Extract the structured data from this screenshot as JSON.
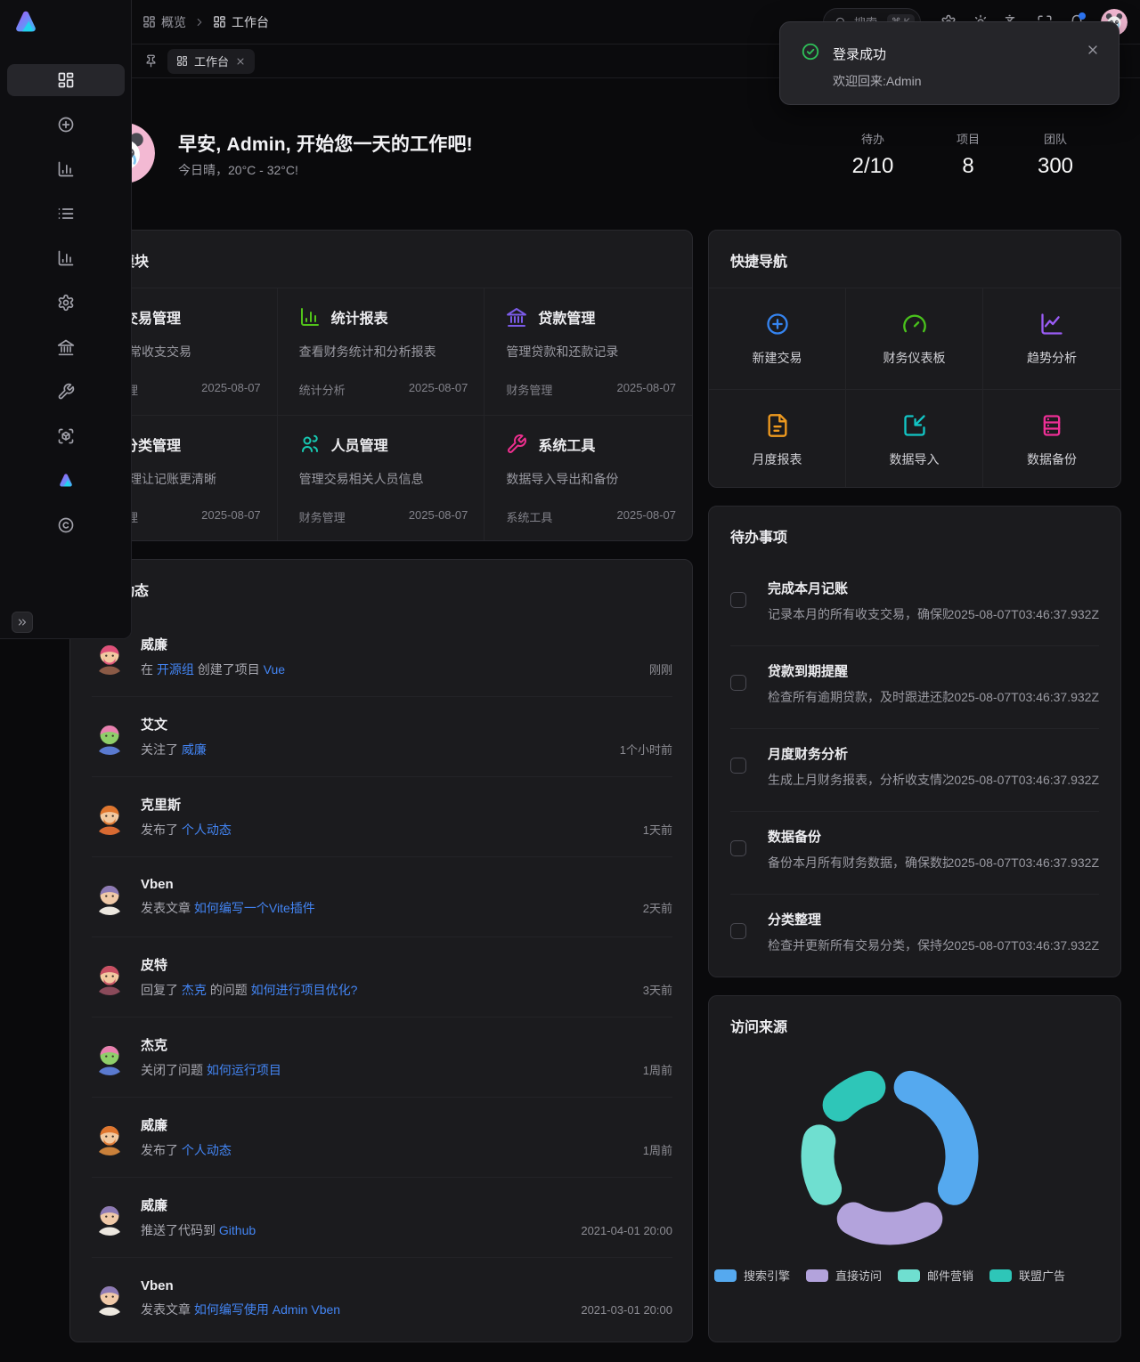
{
  "header": {
    "breadcrumbs": [
      {
        "icon": "layout-grid",
        "label": "概览"
      },
      {
        "icon": "layout-grid",
        "label": "工作台"
      }
    ],
    "search": {
      "placeholder": "搜索",
      "shortcut": "⌘ K"
    },
    "actions": [
      {
        "name": "preferences",
        "icon": "gear",
        "badge": false
      },
      {
        "name": "theme-toggle",
        "icon": "sun",
        "badge": false
      },
      {
        "name": "language",
        "icon": "languages",
        "badge": false
      },
      {
        "name": "fullscreen",
        "icon": "maximize",
        "badge": false
      },
      {
        "name": "notifications",
        "icon": "bell",
        "badge": true
      }
    ]
  },
  "tabbar": {
    "tabs": [
      {
        "icon": "layout-grid",
        "label": "工作台",
        "active": true
      }
    ]
  },
  "toast": {
    "type": "success",
    "title": "登录成功",
    "message": "欢迎回来:Admin"
  },
  "welcome": {
    "greeting": "早安, Admin, 开始您一天的工作吧!",
    "weather": "今日晴，20°C - 32°C!",
    "stats": [
      {
        "label": "待办",
        "value": "2/10"
      },
      {
        "label": "项目",
        "value": "8"
      },
      {
        "label": "团队",
        "value": "300"
      }
    ]
  },
  "sidebar": {
    "items": [
      {
        "name": "dashboard",
        "icon": "layout-grid",
        "active": true
      },
      {
        "name": "new-transaction",
        "icon": "plus-circle",
        "active": false
      },
      {
        "name": "statistics",
        "icon": "chart-column",
        "active": false
      },
      {
        "name": "transactions-list",
        "icon": "list",
        "active": false
      },
      {
        "name": "reports",
        "icon": "chart-column",
        "active": false
      },
      {
        "name": "settings",
        "icon": "gear",
        "active": false
      },
      {
        "name": "loans",
        "icon": "landmark",
        "active": false
      },
      {
        "name": "tools",
        "icon": "wrench",
        "active": false
      },
      {
        "name": "demos",
        "icon": "scan-cube",
        "active": false
      },
      {
        "name": "vben",
        "icon": "logo",
        "active": false
      },
      {
        "name": "about",
        "icon": "copyright",
        "active": false
      }
    ],
    "collapse_glyph": "»"
  },
  "modules": {
    "title": "功能模块",
    "items": [
      {
        "icon": "credit-card",
        "color": "#3b82f6",
        "title": "交易管理",
        "desc": "记录日常收支交易",
        "group": "财务管理",
        "date": "2025-08-07"
      },
      {
        "icon": "chart-column",
        "color": "#52c41a",
        "title": "统计报表",
        "desc": "查看财务统计和分析报表",
        "group": "统计分析",
        "date": "2025-08-07"
      },
      {
        "icon": "landmark",
        "color": "#7b5be8",
        "title": "贷款管理",
        "desc": "管理贷款和还款记录",
        "group": "财务管理",
        "date": "2025-08-07"
      },
      {
        "icon": "folder",
        "color": "#f09c1f",
        "title": "分类管理",
        "desc": "分类管理让记账更清晰",
        "group": "财务管理",
        "date": "2025-08-07"
      },
      {
        "icon": "users",
        "color": "#17c9b2",
        "title": "人员管理",
        "desc": "管理交易相关人员信息",
        "group": "财务管理",
        "date": "2025-08-07"
      },
      {
        "icon": "wrench",
        "color": "#ef2f8f",
        "title": "系统工具",
        "desc": "数据导入导出和备份",
        "group": "系统工具",
        "date": "2025-08-07"
      }
    ]
  },
  "quicknav": {
    "title": "快捷导航",
    "items": [
      {
        "icon": "plus-circle",
        "color": "#3584f0",
        "label": "新建交易"
      },
      {
        "icon": "gauge",
        "color": "#49c11c",
        "label": "财务仪表板"
      },
      {
        "icon": "chart-line",
        "color": "#9a5cf5",
        "label": "趋势分析"
      },
      {
        "icon": "file-text",
        "color": "#ef9a1f",
        "label": "月度报表"
      },
      {
        "icon": "import",
        "color": "#12c5c5",
        "label": "数据导入"
      },
      {
        "icon": "server",
        "color": "#ee2f96",
        "label": "数据备份"
      }
    ]
  },
  "todos": {
    "title": "待办事项",
    "items": [
      {
        "title": "完成本月记账",
        "desc": "记录本月的所有收支交易，确保账...",
        "time": "2025-08-07T03:46:37.932Z",
        "checked": false
      },
      {
        "title": "贷款到期提醒",
        "desc": "检查所有逾期贷款，及时跟进还款...",
        "time": "2025-08-07T03:46:37.932Z",
        "checked": false
      },
      {
        "title": "月度财务分析",
        "desc": "生成上月财务报表，分析收支情况。",
        "time": "2025-08-07T03:46:37.932Z",
        "checked": false
      },
      {
        "title": "数据备份",
        "desc": "备份本月所有财务数据，确保数据...",
        "time": "2025-08-07T03:46:37.932Z",
        "checked": false
      },
      {
        "title": "分类整理",
        "desc": "检查并更新所有交易分类，保持分...",
        "time": "2025-08-07T03:46:37.932Z",
        "checked": false
      }
    ]
  },
  "activity": {
    "title": "最新动态",
    "items": [
      {
        "user": "威廉",
        "avatar": {
          "skin": "#f2c9a0",
          "hair": "#e0507a",
          "cloth": "#8a5a46",
          "beard": true
        },
        "segments": [
          {
            "text": "在 ",
            "link": false
          },
          {
            "text": "开源组",
            "link": true
          },
          {
            "text": " 创建了项目 ",
            "link": false
          },
          {
            "text": "Vue",
            "link": true
          }
        ],
        "time": "刚刚"
      },
      {
        "user": "艾文",
        "avatar": {
          "skin": "#8fcf6a",
          "hair": "#e87fb0",
          "cloth": "#5a7ad0",
          "beard": false
        },
        "segments": [
          {
            "text": "关注了 ",
            "link": false
          },
          {
            "text": "威廉",
            "link": true
          }
        ],
        "time": "1个小时前"
      },
      {
        "user": "克里斯",
        "avatar": {
          "skin": "#f2c9a0",
          "hair": "#e0762e",
          "cloth": "#d86a32",
          "beard": true
        },
        "segments": [
          {
            "text": "发布了 ",
            "link": false
          },
          {
            "text": "个人动态",
            "link": true
          }
        ],
        "time": "1天前"
      },
      {
        "user": "Vben",
        "avatar": {
          "skin": "#f0c9a8",
          "hair": "#8d7ab5",
          "cloth": "#ece7df",
          "beard": false
        },
        "segments": [
          {
            "text": "发表文章 ",
            "link": false
          },
          {
            "text": "如何编写一个Vite插件",
            "link": true
          }
        ],
        "time": "2天前"
      },
      {
        "user": "皮特",
        "avatar": {
          "skin": "#f2c9a0",
          "hair": "#c94f63",
          "cloth": "#8a4a5a",
          "beard": true
        },
        "segments": [
          {
            "text": "回复了 ",
            "link": false
          },
          {
            "text": "杰克",
            "link": true
          },
          {
            "text": " 的问题 ",
            "link": false
          },
          {
            "text": "如何进行项目优化?",
            "link": true
          }
        ],
        "time": "3天前"
      },
      {
        "user": "杰克",
        "avatar": {
          "skin": "#8fcf6a",
          "hair": "#e87fb0",
          "cloth": "#5a7ad0",
          "beard": false
        },
        "segments": [
          {
            "text": "关闭了问题 ",
            "link": false
          },
          {
            "text": "如何运行项目",
            "link": true
          }
        ],
        "time": "1周前"
      },
      {
        "user": "威廉",
        "avatar": {
          "skin": "#f2c9a0",
          "hair": "#e0762e",
          "cloth": "#c9803a",
          "beard": true
        },
        "segments": [
          {
            "text": "发布了 ",
            "link": false
          },
          {
            "text": "个人动态",
            "link": true
          }
        ],
        "time": "1周前"
      },
      {
        "user": "威廉",
        "avatar": {
          "skin": "#f0c9a8",
          "hair": "#8d7ab5",
          "cloth": "#ece7df",
          "beard": false
        },
        "segments": [
          {
            "text": "推送了代码到 ",
            "link": false
          },
          {
            "text": "Github",
            "link": true
          }
        ],
        "time": "2021-04-01 20:00"
      },
      {
        "user": "Vben",
        "avatar": {
          "skin": "#f0c9a8",
          "hair": "#8d7ab5",
          "cloth": "#ece7df",
          "beard": false
        },
        "segments": [
          {
            "text": "发表文章 ",
            "link": false
          },
          {
            "text": "如何编写使用 Admin Vben",
            "link": true
          }
        ],
        "time": "2021-03-01 20:00"
      }
    ]
  },
  "visits": {
    "title": "访问来源"
  },
  "chart_data": {
    "type": "pie",
    "title": "访问来源",
    "donut": true,
    "inner_radius_ratio": 0.63,
    "legend_position": "bottom",
    "values_are_percent_estimates": true,
    "series": [
      {
        "name": "搜索引擎",
        "value": 37,
        "color": "#55a9ef"
      },
      {
        "name": "直接访问",
        "value": 26,
        "color": "#b3a3dc"
      },
      {
        "name": "邮件营销",
        "value": 20,
        "color": "#6fdfd0"
      },
      {
        "name": "联盟广告",
        "value": 17,
        "color": "#2ec6b8"
      }
    ]
  },
  "accent_colors": {
    "link": "#4385f4",
    "success": "#2fbe58",
    "notification_dot": "#2f7bff"
  }
}
